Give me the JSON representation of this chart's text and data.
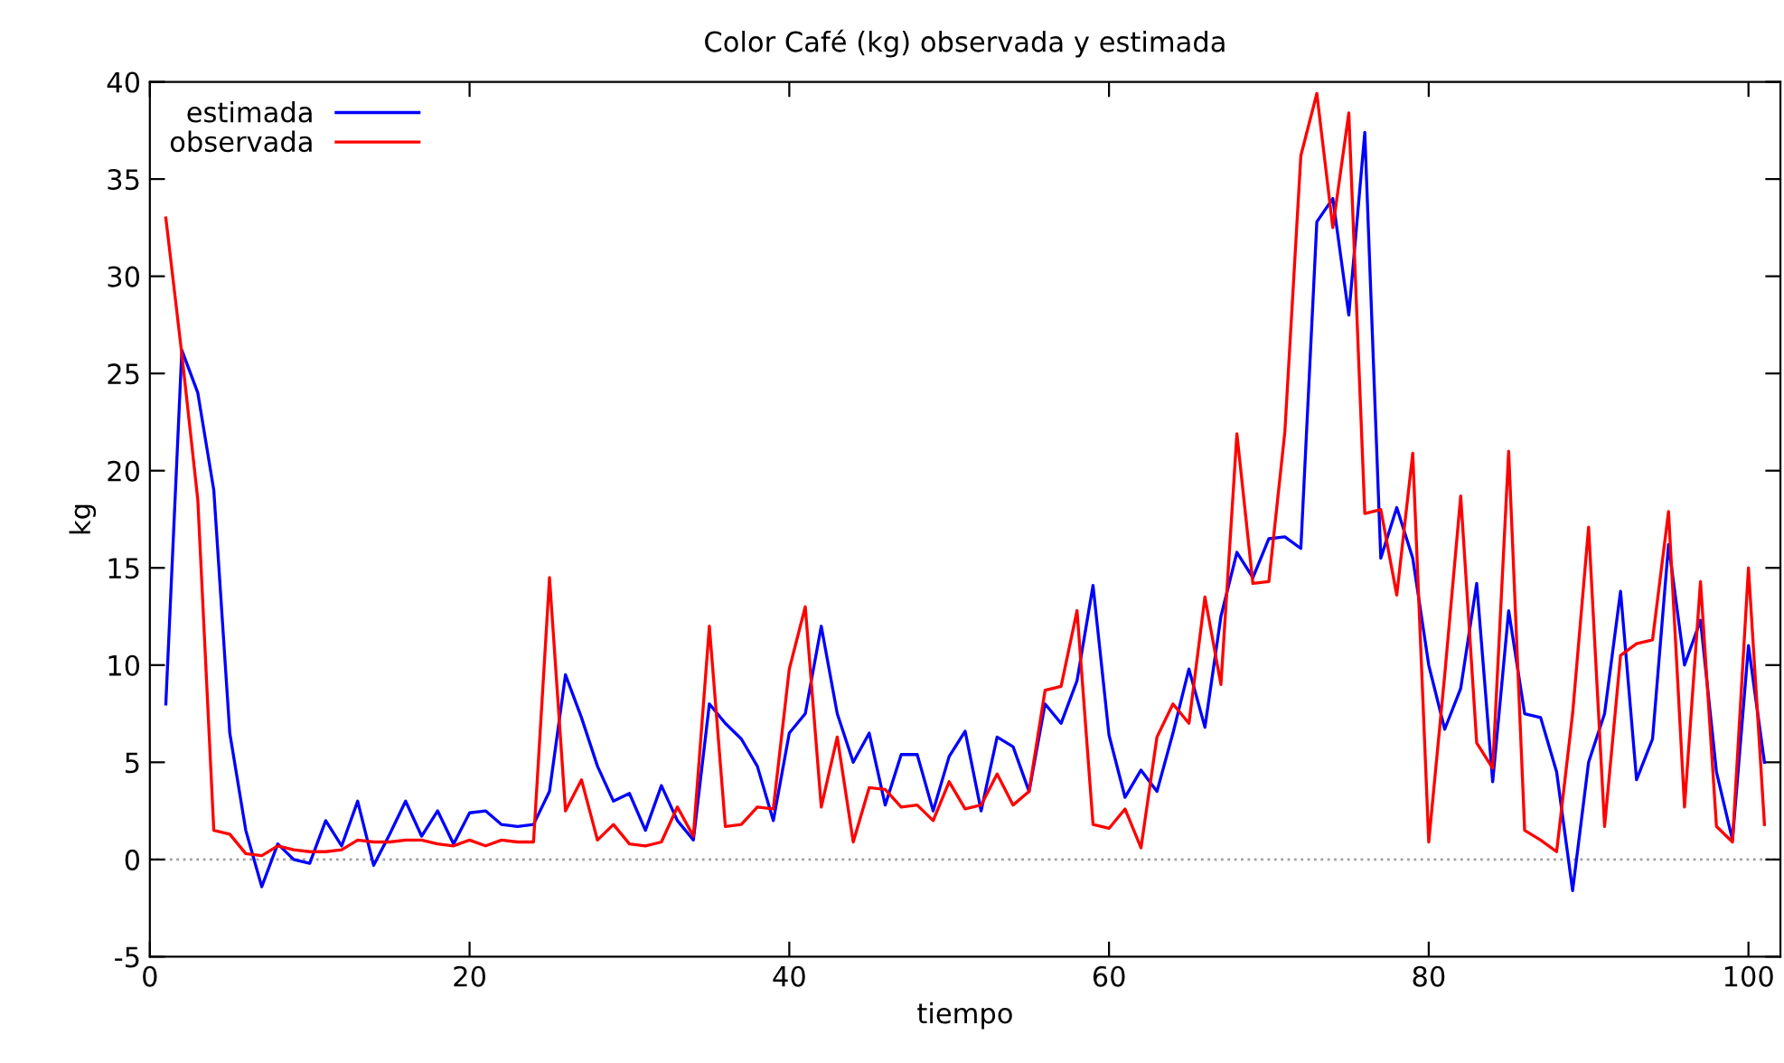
{
  "chart_data": {
    "type": "line",
    "title": "Color Café (kg) observada y estimada",
    "xlabel": "tiempo",
    "ylabel": "kg",
    "x": [
      1,
      2,
      3,
      4,
      5,
      6,
      7,
      8,
      9,
      10,
      11,
      12,
      13,
      14,
      15,
      16,
      17,
      18,
      19,
      20,
      21,
      22,
      23,
      24,
      25,
      26,
      27,
      28,
      29,
      30,
      31,
      32,
      33,
      34,
      35,
      36,
      37,
      38,
      39,
      40,
      41,
      42,
      43,
      44,
      45,
      46,
      47,
      48,
      49,
      50,
      51,
      52,
      53,
      54,
      55,
      56,
      57,
      58,
      59,
      60,
      61,
      62,
      63,
      64,
      65,
      66,
      67,
      68,
      69,
      70,
      71,
      72,
      73,
      74,
      75,
      76,
      77,
      78,
      79,
      80,
      81,
      82,
      83,
      84,
      85,
      86,
      87,
      88,
      89,
      90,
      91,
      92,
      93,
      94,
      95,
      96,
      97,
      98,
      99,
      100,
      101
    ],
    "series": [
      {
        "name": "estimada",
        "color": "#0000ff",
        "values": [
          8,
          26.2,
          24,
          19,
          6.5,
          1.5,
          -1.4,
          0.8,
          0,
          -0.2,
          2,
          0.7,
          3,
          -0.3,
          1.3,
          3,
          1.2,
          2.5,
          0.8,
          2.4,
          2.5,
          1.8,
          1.7,
          1.8,
          3.5,
          9.5,
          7.3,
          4.8,
          3,
          3.4,
          1.5,
          3.8,
          2,
          1,
          8,
          7,
          6.2,
          4.8,
          2,
          6.5,
          7.5,
          12,
          7.5,
          5,
          6.5,
          2.8,
          5.4,
          5.4,
          2.5,
          5.3,
          6.6,
          2.5,
          6.3,
          5.8,
          3.5,
          8,
          7,
          9.2,
          14.1,
          6.4,
          3.2,
          4.6,
          3.5,
          6.5,
          9.8,
          6.8,
          12.5,
          15.8,
          14.5,
          16.5,
          16.6,
          16,
          32.8,
          34,
          28,
          37.4,
          15.5,
          18.1,
          15.5,
          10,
          6.7,
          8.8,
          14.2,
          4,
          12.8,
          7.5,
          7.3,
          4.5,
          -1.6,
          5,
          7.5,
          13.8,
          4.1,
          6.2,
          16.2,
          10,
          12.3,
          4.5,
          1,
          11,
          5
        ]
      },
      {
        "name": "observada",
        "color": "#ff0000",
        "values": [
          33,
          26,
          18.5,
          1.5,
          1.3,
          0.3,
          0.2,
          0.7,
          0.5,
          0.4,
          0.4,
          0.5,
          1,
          0.9,
          0.9,
          1,
          1,
          0.8,
          0.7,
          1,
          0.7,
          1,
          0.9,
          0.9,
          14.5,
          2.5,
          4.1,
          1,
          1.8,
          0.8,
          0.7,
          0.9,
          2.7,
          1.2,
          12,
          1.7,
          1.8,
          2.7,
          2.6,
          9.8,
          13,
          2.7,
          6.3,
          0.9,
          3.7,
          3.6,
          2.7,
          2.8,
          2,
          4,
          2.6,
          2.8,
          4.4,
          2.8,
          3.5,
          8.7,
          8.9,
          12.8,
          1.8,
          1.6,
          2.6,
          0.6,
          6.3,
          8,
          7,
          13.5,
          9,
          21.9,
          14.2,
          14.3,
          22,
          36.2,
          39.4,
          32.5,
          38.4,
          17.8,
          18,
          13.6,
          20.9,
          0.9,
          9.5,
          18.7,
          6,
          4.7,
          21,
          1.5,
          1,
          0.4,
          7.5,
          17.1,
          1.7,
          10.5,
          11.1,
          11.3,
          17.9,
          2.7,
          14.3,
          1.7,
          0.9,
          15,
          1.8
        ]
      }
    ],
    "xlim": [
      0,
      102
    ],
    "ylim": [
      -5,
      40
    ],
    "xticks": [
      0,
      20,
      40,
      60,
      80,
      100
    ],
    "yticks": [
      -5,
      0,
      5,
      10,
      15,
      20,
      25,
      30,
      35,
      40
    ],
    "ref_lines": [
      {
        "axis": "y",
        "value": 0,
        "color": "#a0a0a0",
        "line_style": "dotted"
      }
    ],
    "grid": false,
    "legend": "top left",
    "line_style": "solid",
    "marker": "none"
  }
}
